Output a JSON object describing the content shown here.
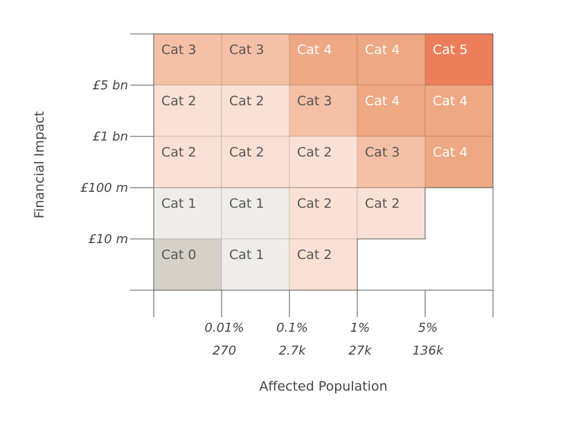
{
  "chart_data": {
    "type": "heatmap",
    "xlabel": "Affected Population",
    "ylabel": "Financial Impact",
    "x_ticks": [
      {
        "pct": "0.01%",
        "count": "270"
      },
      {
        "pct": "0.1%",
        "count": "2.7k"
      },
      {
        "pct": "1%",
        "count": "27k"
      },
      {
        "pct": "5%",
        "count": "136k"
      }
    ],
    "y_ticks": [
      "£5 bn",
      "£1 bn",
      "£100 m",
      "£10 m"
    ],
    "rows": [
      [
        "Cat 3",
        "Cat 3",
        "Cat 4",
        "Cat 4",
        "Cat 5"
      ],
      [
        "Cat 2",
        "Cat 2",
        "Cat 3",
        "Cat 4",
        "Cat 4"
      ],
      [
        "Cat 2",
        "Cat 2",
        "Cat 2",
        "Cat 3",
        "Cat 4"
      ],
      [
        "Cat 1",
        "Cat 1",
        "Cat 2",
        "Cat 2",
        ""
      ],
      [
        "Cat 0",
        "Cat 1",
        "Cat 2",
        "",
        ""
      ]
    ],
    "category_colors": {
      "Cat 0": "#d6d1c8",
      "Cat 1": "#efede9",
      "Cat 2": "#fbe0d5",
      "Cat 3": "#f5c0a6",
      "Cat 4": "#eea884",
      "Cat 5": "#ec7f5a"
    },
    "light_text_categories": [
      "Cat 4",
      "Cat 5"
    ],
    "grid": true
  }
}
